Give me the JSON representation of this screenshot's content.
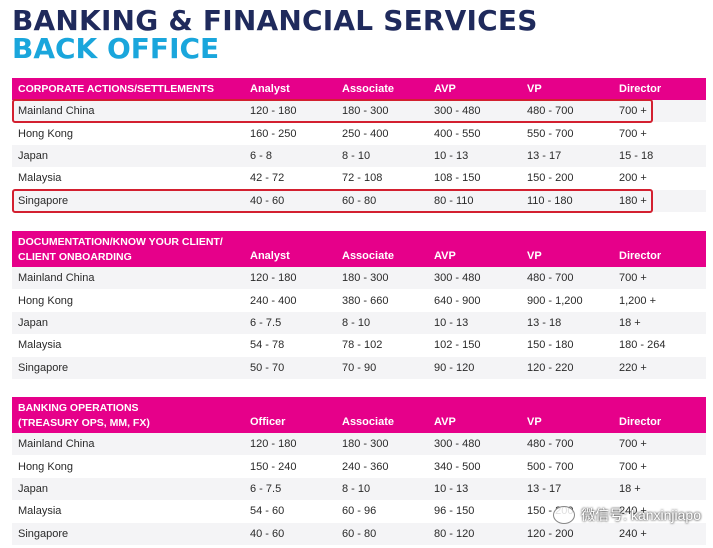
{
  "title_line1": "BANKING & FINANCIAL SERVICES",
  "title_line2": "BACK OFFICE",
  "sections": [
    {
      "header_label_line1": "CORPORATE ACTIONS/SETTLEMENTS",
      "header_label_line2": "",
      "columns": [
        "Analyst",
        "Associate",
        "AVP",
        "VP",
        "Director"
      ],
      "rows": [
        {
          "location": "Mainland China",
          "values": [
            "120 - 180",
            "180 - 300",
            "300 - 480",
            "480 - 700",
            "700 +"
          ]
        },
        {
          "location": "Hong Kong",
          "values": [
            "160 - 250",
            "250 - 400",
            "400 - 550",
            "550 - 700",
            "700 +"
          ]
        },
        {
          "location": "Japan",
          "values": [
            "6 - 8",
            "8 - 10",
            "10 - 13",
            "13 - 17",
            "15 - 18"
          ]
        },
        {
          "location": "Malaysia",
          "values": [
            "42 - 72",
            "72 - 108",
            "108 - 150",
            "150 - 200",
            "200 +"
          ]
        },
        {
          "location": "Singapore",
          "values": [
            "40 - 60",
            "60 - 80",
            "80 - 110",
            "110 - 180",
            "180 +"
          ]
        }
      ]
    },
    {
      "header_label_line1": "DOCUMENTATION/KNOW YOUR CLIENT/",
      "header_label_line2": "CLIENT ONBOARDING",
      "columns": [
        "Analyst",
        "Associate",
        "AVP",
        "VP",
        "Director"
      ],
      "rows": [
        {
          "location": "Mainland China",
          "values": [
            "120 - 180",
            "180 - 300",
            "300 - 480",
            "480 - 700",
            "700 +"
          ]
        },
        {
          "location": "Hong Kong",
          "values": [
            "240 - 400",
            "380 - 660",
            "640 - 900",
            "900 - 1,200",
            "1,200 +"
          ]
        },
        {
          "location": "Japan",
          "values": [
            "6 - 7.5",
            "8 - 10",
            "10 - 13",
            "13 - 18",
            "18 +"
          ]
        },
        {
          "location": "Malaysia",
          "values": [
            "54 - 78",
            "78 - 102",
            "102 - 150",
            "150 - 180",
            "180 - 264"
          ]
        },
        {
          "location": "Singapore",
          "values": [
            "50 - 70",
            "70 - 90",
            "90 - 120",
            "120 - 220",
            "220 +"
          ]
        }
      ]
    },
    {
      "header_label_line1": "BANKING OPERATIONS",
      "header_label_line2": "(TREASURY OPS, MM, FX)",
      "columns": [
        "Officer",
        "Associate",
        "AVP",
        "VP",
        "Director"
      ],
      "rows": [
        {
          "location": "Mainland China",
          "values": [
            "120 - 180",
            "180 - 300",
            "300 - 480",
            "480 - 700",
            "700 +"
          ]
        },
        {
          "location": "Hong Kong",
          "values": [
            "150 - 240",
            "240 - 360",
            "340 - 500",
            "500 - 700",
            "700 +"
          ]
        },
        {
          "location": "Japan",
          "values": [
            "6 - 7.5",
            "8 - 10",
            "10 - 13",
            "13 - 17",
            "18 +"
          ]
        },
        {
          "location": "Malaysia",
          "values": [
            "54 - 60",
            "60 - 96",
            "96 - 150",
            "150 - 200",
            "240 +"
          ]
        },
        {
          "location": "Singapore",
          "values": [
            "40 - 60",
            "60 - 80",
            "80 - 120",
            "120 - 200",
            "240 +"
          ]
        }
      ]
    }
  ],
  "highlight_color": "#d32030",
  "header_color": "#e6008a",
  "watermark_text": "微信号: kanxinjiapo",
  "watermark_icon": "wechat-icon"
}
